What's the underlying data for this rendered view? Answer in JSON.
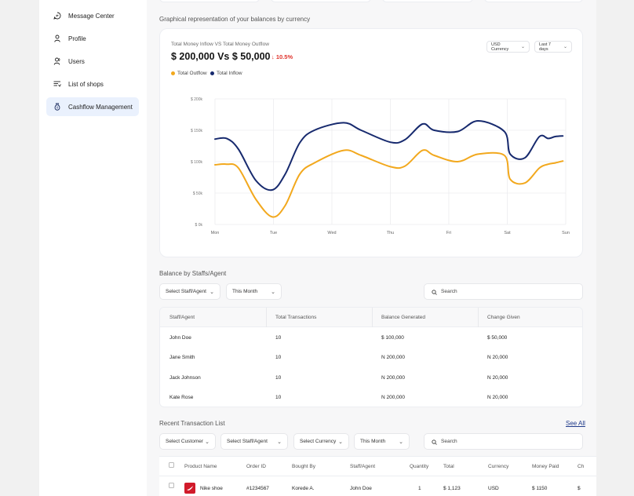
{
  "sidebar": {
    "items": [
      {
        "label": "Message Center",
        "icon": "message-icon",
        "active": false
      },
      {
        "label": "Profile",
        "icon": "profile-icon",
        "active": false
      },
      {
        "label": "Users",
        "icon": "users-icon",
        "active": false
      },
      {
        "label": "List of shops",
        "icon": "list-icon",
        "active": false
      },
      {
        "label": "Cashflow Management",
        "icon": "cashflow-icon",
        "active": true
      }
    ]
  },
  "graph_section": {
    "title": "Graphical representation of your balances by currency"
  },
  "chart_card": {
    "subtitle": "Total Money Inflow VS Total Money Outflow",
    "headline": "$ 200,000 Vs $ 50,000",
    "change": "10.5%",
    "currency_select": "USD Currency",
    "period_select": "Last 7 days"
  },
  "colors": {
    "outflow": "#f2a81d",
    "inflow": "#172a6e",
    "accent_bg": "#eaf1fd",
    "negative": "#e0322b"
  },
  "chart_data": {
    "type": "line",
    "x": [
      "Mon",
      "Tue",
      "Wed",
      "Thu",
      "Fri",
      "Sat",
      "Sun"
    ],
    "xlim": [
      0,
      6
    ],
    "ylim": [
      0,
      200
    ],
    "ytick_labels": [
      "$ 0k",
      "$ 50k",
      "$ 100k",
      "$ 150k",
      "$ 200k"
    ],
    "legend": [
      "Total Outflow",
      "Total Inflow"
    ],
    "legend_position": "top-left",
    "grid": true,
    "series": [
      {
        "name": "Total Inflow",
        "color": "#172a6e",
        "points": [
          [
            0,
            136
          ],
          [
            0.2,
            137
          ],
          [
            0.4,
            120
          ],
          [
            0.7,
            70
          ],
          [
            0.98,
            55
          ],
          [
            1.2,
            80
          ],
          [
            1.45,
            130
          ],
          [
            1.7,
            150
          ],
          [
            2.2,
            162
          ],
          [
            2.5,
            150
          ],
          [
            3.0,
            131
          ],
          [
            3.25,
            135
          ],
          [
            3.55,
            160
          ],
          [
            3.75,
            150
          ],
          [
            4.15,
            148
          ],
          [
            4.5,
            165
          ],
          [
            4.95,
            148
          ],
          [
            5.05,
            112
          ],
          [
            5.3,
            106
          ],
          [
            5.55,
            140
          ],
          [
            5.7,
            137
          ],
          [
            5.82,
            140
          ],
          [
            5.95,
            141
          ]
        ]
      },
      {
        "name": "Total Outflow",
        "color": "#f2a81d",
        "points": [
          [
            0,
            95
          ],
          [
            0.2,
            96
          ],
          [
            0.4,
            90
          ],
          [
            0.7,
            40
          ],
          [
            0.98,
            12
          ],
          [
            1.2,
            30
          ],
          [
            1.45,
            80
          ],
          [
            1.7,
            98
          ],
          [
            2.2,
            118
          ],
          [
            2.5,
            110
          ],
          [
            3.0,
            92
          ],
          [
            3.25,
            93
          ],
          [
            3.55,
            118
          ],
          [
            3.75,
            110
          ],
          [
            4.15,
            100
          ],
          [
            4.5,
            112
          ],
          [
            4.95,
            110
          ],
          [
            5.05,
            72
          ],
          [
            5.3,
            66
          ],
          [
            5.55,
            90
          ],
          [
            5.7,
            96
          ],
          [
            5.82,
            98
          ],
          [
            5.95,
            101
          ]
        ]
      }
    ]
  },
  "staff_section": {
    "title": "Balance by Staffs/Agent",
    "staff_filter": "Select Staff/Agent",
    "period_filter": "This Month",
    "search_placeholder": "Search",
    "columns": [
      "Staff/Agent",
      "Total Transactions",
      "Balance Generated",
      "Change Given"
    ],
    "rows": [
      [
        "John Doe",
        "10",
        "$ 100,000",
        "$ 50,000"
      ],
      [
        "Jane Smith",
        "10",
        "N 200,000",
        "N 20,000"
      ],
      [
        "Jack Johnson",
        "10",
        "N 200,000",
        "N 20,000"
      ],
      [
        "Kate Rose",
        "10",
        "N 200,000",
        "N 20,000"
      ]
    ]
  },
  "transactions": {
    "title": "Recent Transaction List",
    "see_all": "See All",
    "filters": [
      "Select Customer",
      "Select Staff/Agent",
      "Select Currency",
      "This Month"
    ],
    "search_placeholder": "Search",
    "columns": [
      "Product Name",
      "Order ID",
      "Bought By",
      "Staff/Agent",
      "Quantity",
      "Total",
      "Currency",
      "Money Paid",
      "Ch"
    ],
    "rows": [
      {
        "product": "Nike shoe",
        "product_icon": "nike-shoe-icon",
        "order_id": "#1234567",
        "bought_by": "Korede A.",
        "staff": "John Doe",
        "quantity": "1",
        "total": "$ 1,123",
        "currency": "USD",
        "money_paid": "$ 1150",
        "change": "$"
      }
    ]
  }
}
